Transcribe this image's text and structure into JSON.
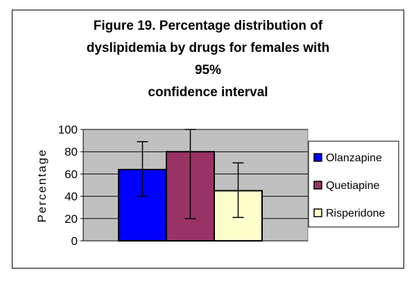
{
  "chart_data": {
    "type": "bar",
    "title": "Figure 19. Percentage distribution of dyslipidemia by drugs for females with 95% confidence interval",
    "title_lines": [
      "Figure 19. Percentage distribution of",
      "dyslipidemia by drugs for females with 95%",
      "confidence interval"
    ],
    "ylabel": "Percentage",
    "xlabel": "",
    "ylim": [
      0,
      100
    ],
    "yticks": [
      0,
      20,
      40,
      60,
      80,
      100
    ],
    "grid": true,
    "plot_background": "#c0c0c0",
    "legend_position": "right",
    "series": [
      {
        "name": "Olanzapine",
        "value": 64,
        "ci_low": 40,
        "ci_high": 89,
        "color": "#0000ff"
      },
      {
        "name": "Quetiapine",
        "value": 80,
        "ci_low": 20,
        "ci_high": 100,
        "color": "#993366"
      },
      {
        "name": "Risperidone",
        "value": 45,
        "ci_low": 21,
        "ci_high": 70,
        "color": "#ffffcc"
      }
    ]
  }
}
